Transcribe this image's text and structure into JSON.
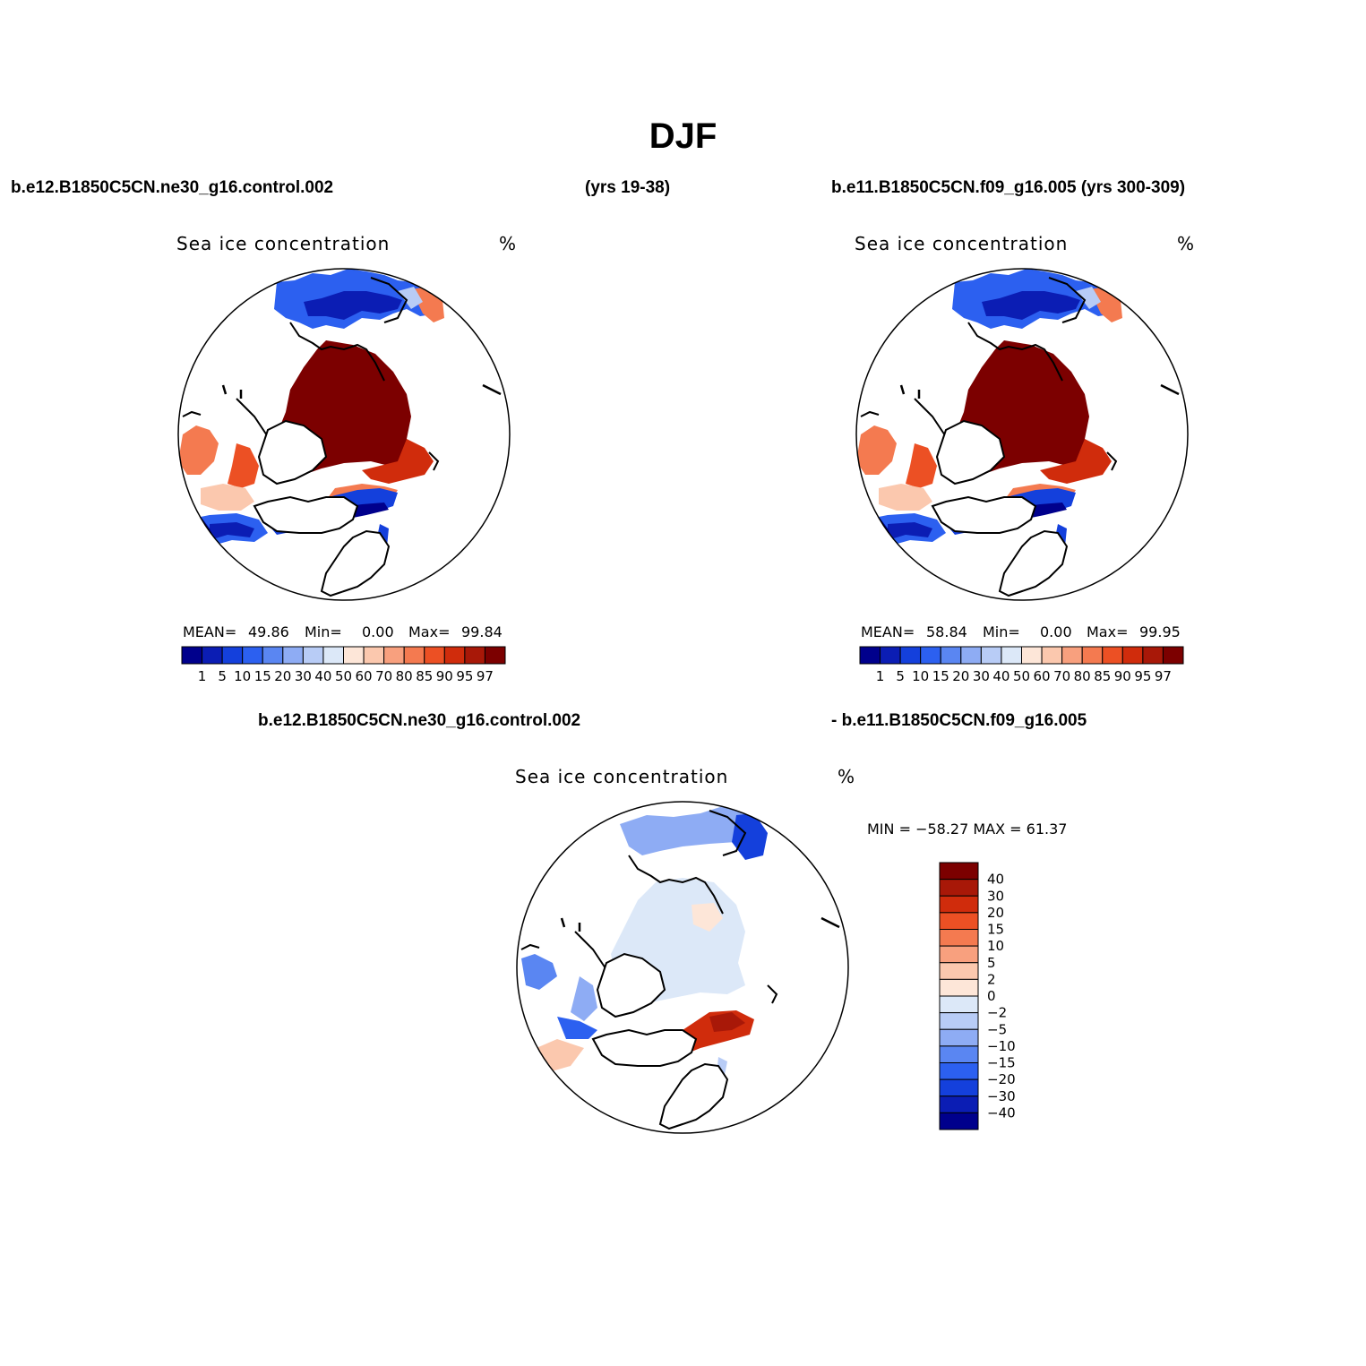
{
  "title": "DJF",
  "header": {
    "case_left": "b.e12.B1850C5CN.ne30_g16.control.002",
    "years_left": "(yrs 19-38)",
    "case_right": "b.e11.B1850C5CN.f09_g16.005 (yrs 300-309)",
    "diff_case_a": "b.e12.B1850C5CN.ne30_g16.control.002",
    "diff_case_b": "- b.e11.B1850C5CN.f09_g16.005"
  },
  "panels": [
    {
      "id": "left",
      "variable": "Sea ice concentration",
      "units": "%",
      "stats": {
        "mean_label": "MEAN=",
        "mean": "49.86",
        "min_label": "Min=",
        "min": "0.00",
        "max_label": "Max=",
        "max": "99.84"
      }
    },
    {
      "id": "right",
      "variable": "Sea ice concentration",
      "units": "%",
      "stats": {
        "mean_label": "MEAN=",
        "mean": "58.84",
        "min_label": "Min=",
        "min": "0.00",
        "max_label": "Max=",
        "max": "99.95"
      }
    },
    {
      "id": "diff",
      "variable": "Sea ice concentration",
      "units": "%",
      "minmax_text": "MIN = −58.27  MAX =   61.37"
    }
  ],
  "colorbar_abs": {
    "levels": [
      "1",
      "5",
      "10",
      "15",
      "20",
      "30",
      "40",
      "50",
      "60",
      "70",
      "80",
      "85",
      "90",
      "95",
      "97"
    ],
    "colors": [
      "#00008c",
      "#0b1db4",
      "#1440dc",
      "#2c60f0",
      "#5a86f2",
      "#8eacf4",
      "#b8ccf6",
      "#dce8f8",
      "#fde6d8",
      "#fbc8ae",
      "#f8a07e",
      "#f47a50",
      "#ec5024",
      "#d02c0c",
      "#a81808",
      "#7c0000"
    ]
  },
  "colorbar_diff": {
    "levels": [
      "40",
      "30",
      "20",
      "15",
      "10",
      "5",
      "2",
      "0",
      "−2",
      "−5",
      "−10",
      "−15",
      "−20",
      "−30",
      "−40"
    ],
    "colors": [
      "#7c0000",
      "#a81808",
      "#d02c0c",
      "#ec5024",
      "#f47a50",
      "#f8a07e",
      "#fbc8ae",
      "#fde6d8",
      "#dce8f8",
      "#b8ccf6",
      "#8eacf4",
      "#5a86f2",
      "#2c60f0",
      "#1440dc",
      "#0b1db4",
      "#00008c"
    ]
  }
}
